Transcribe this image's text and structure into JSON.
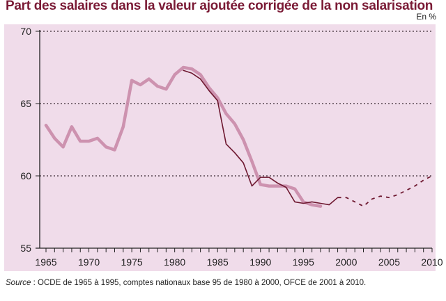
{
  "chart_data": {
    "type": "line",
    "title": "Part des salaires dans la valeur ajoutée corrigée de la non salarisation",
    "unit_label": "En %",
    "xlabel": "",
    "ylabel": "",
    "ylim": [
      55,
      70
    ],
    "xlim": [
      1965,
      2010
    ],
    "y_ticks": [
      "55",
      "60",
      "65",
      "70"
    ],
    "x_ticks": [
      "1965",
      "1970",
      "1975",
      "1980",
      "1985",
      "1990",
      "1995",
      "2000",
      "2005",
      "2010"
    ],
    "grid": "horizontal dotted",
    "series": [
      {
        "name": "OCDE",
        "style": "thick",
        "color": "#c98aa8",
        "x": [
          1965,
          1966,
          1967,
          1968,
          1969,
          1970,
          1971,
          1972,
          1973,
          1974,
          1975,
          1976,
          1977,
          1978,
          1979,
          1980,
          1981,
          1982,
          1983,
          1984,
          1985,
          1986,
          1987,
          1988,
          1989,
          1990,
          1991,
          1992,
          1993,
          1994,
          1995,
          1996,
          1997
        ],
        "y": [
          63.5,
          62.6,
          62.0,
          63.4,
          62.4,
          62.4,
          62.6,
          62.0,
          61.8,
          63.4,
          66.6,
          66.3,
          66.7,
          66.2,
          66.0,
          67.0,
          67.5,
          67.4,
          67.0,
          66.1,
          65.4,
          64.3,
          63.6,
          62.5,
          61.0,
          59.4,
          59.3,
          59.3,
          59.3,
          59.1,
          58.2,
          58.0,
          57.9
        ]
      },
      {
        "name": "comptes nationaux base 95",
        "style": "thin",
        "color": "#6e1830",
        "x": [
          1981,
          1982,
          1983,
          1984,
          1985,
          1986,
          1987,
          1988,
          1989,
          1990,
          1991,
          1992,
          1993,
          1994,
          1995,
          1996,
          1997,
          1998,
          1999
        ],
        "y": [
          67.3,
          67.1,
          66.7,
          65.9,
          65.2,
          62.2,
          61.6,
          60.9,
          59.3,
          59.9,
          59.9,
          59.5,
          59.2,
          58.2,
          58.1,
          58.2,
          58.1,
          58.0,
          58.5
        ]
      },
      {
        "name": "OFCE",
        "style": "dashed",
        "color": "#6e1830",
        "x": [
          1999,
          2000,
          2001,
          2002,
          2003,
          2004,
          2005,
          2006,
          2007,
          2008,
          2009,
          2010
        ],
        "y": [
          58.5,
          58.5,
          58.2,
          57.9,
          58.4,
          58.6,
          58.5,
          58.7,
          59.0,
          59.3,
          59.7,
          60.0
        ]
      }
    ]
  },
  "source": {
    "label": "Source",
    "text": " : OCDE de 1965 à 1995, comptes nationaux base 95 de 1980 à 2000, OFCE de 2001 à 2010."
  }
}
